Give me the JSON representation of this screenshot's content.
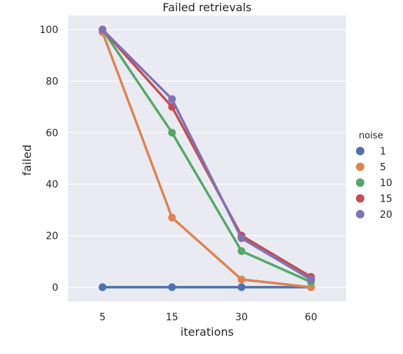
{
  "chart_data": {
    "type": "line",
    "title": "Failed retrievals",
    "xlabel": "iterations",
    "ylabel": "failed",
    "categories": [
      "5",
      "15",
      "30",
      "60"
    ],
    "ylim": [
      -5.5,
      105.5
    ],
    "yticks": [
      0,
      20,
      40,
      60,
      80,
      100
    ],
    "grid": true,
    "legend": {
      "title": "noise",
      "placement": "right"
    },
    "series": [
      {
        "name": "1",
        "color": "#4c72b0",
        "values": [
          0,
          0,
          0,
          0
        ]
      },
      {
        "name": "5",
        "color": "#dd8452",
        "values": [
          99,
          27,
          3,
          0
        ]
      },
      {
        "name": "10",
        "color": "#55a868",
        "values": [
          100,
          60,
          14,
          2
        ]
      },
      {
        "name": "15",
        "color": "#c44e52",
        "values": [
          100,
          70,
          20,
          4
        ]
      },
      {
        "name": "20",
        "color": "#8172b3",
        "values": [
          100,
          73,
          19,
          3
        ]
      }
    ]
  }
}
